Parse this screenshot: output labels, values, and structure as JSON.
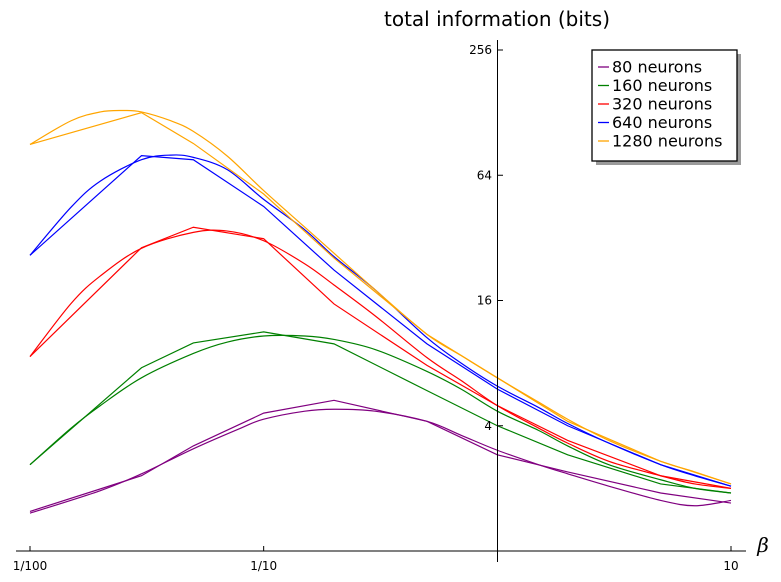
{
  "chart_data": {
    "type": "line",
    "title": "total information (bits)",
    "xlabel": "β",
    "ylabel": "",
    "x_scale": "log",
    "y_scale": "log2",
    "xlim": [
      0.01,
      10
    ],
    "ylim": [
      1,
      256
    ],
    "x_ticks": [
      {
        "value": 0.01,
        "label": "1/100"
      },
      {
        "value": 0.1,
        "label": "1/10"
      },
      {
        "value": 10,
        "label": "10"
      }
    ],
    "y_ticks": [
      {
        "value": 4,
        "label": "4"
      },
      {
        "value": 16,
        "label": "16"
      },
      {
        "value": 64,
        "label": "64"
      },
      {
        "value": 256,
        "label": "256"
      }
    ],
    "legend_position": "top-right",
    "series": [
      {
        "name": "80 neurons",
        "color": "#800080",
        "empirical": {
          "x": [
            0.01,
            0.03,
            0.05,
            0.1,
            0.2,
            0.5,
            1,
            2,
            5,
            10
          ],
          "y": [
            1.55,
            2.3,
            3.2,
            4.6,
            5.3,
            4.2,
            2.9,
            2.4,
            1.9,
            1.7
          ]
        },
        "fit": {
          "x": [
            0.01,
            0.02,
            0.03,
            0.05,
            0.08,
            0.1,
            0.15,
            0.2,
            0.3,
            0.5,
            0.7,
            1,
            1.5,
            2,
            3,
            5,
            7,
            10
          ],
          "y": [
            1.52,
            1.95,
            2.35,
            3.1,
            3.9,
            4.3,
            4.7,
            4.8,
            4.7,
            4.2,
            3.6,
            3.05,
            2.6,
            2.35,
            2.05,
            1.75,
            1.65,
            1.75
          ]
        }
      },
      {
        "name": "160 neurons",
        "color": "#008000",
        "empirical": {
          "x": [
            0.01,
            0.03,
            0.05,
            0.1,
            0.2,
            0.5,
            1,
            2,
            5,
            10
          ],
          "y": [
            2.6,
            7.6,
            10.0,
            11.3,
            9.9,
            5.9,
            4.0,
            2.9,
            2.1,
            1.9
          ]
        },
        "fit": {
          "x": [
            0.01,
            0.015,
            0.02,
            0.03,
            0.05,
            0.07,
            0.1,
            0.15,
            0.2,
            0.3,
            0.5,
            0.7,
            1,
            1.5,
            2,
            3,
            5,
            7,
            10
          ],
          "y": [
            2.6,
            3.9,
            5.0,
            6.8,
            8.9,
            10.1,
            10.8,
            10.8,
            10.4,
            9.3,
            7.3,
            6.0,
            4.7,
            3.8,
            3.2,
            2.6,
            2.2,
            2.0,
            1.9
          ]
        }
      },
      {
        "name": "320 neurons",
        "color": "#ff0000",
        "empirical": {
          "x": [
            0.01,
            0.03,
            0.05,
            0.1,
            0.2,
            0.5,
            1,
            2,
            5,
            10
          ],
          "y": [
            8.6,
            28.7,
            36.0,
            31.7,
            15.4,
            7.8,
            5.0,
            3.4,
            2.3,
            2.0
          ]
        },
        "fit": {
          "x": [
            0.01,
            0.015,
            0.02,
            0.03,
            0.05,
            0.07,
            0.1,
            0.15,
            0.2,
            0.3,
            0.5,
            0.7,
            1,
            1.5,
            2,
            3,
            5,
            7,
            10
          ],
          "y": [
            8.6,
            15.5,
            21.0,
            28.5,
            34.0,
            34.5,
            31.0,
            24.0,
            19.0,
            13.5,
            8.5,
            6.6,
            5.0,
            3.9,
            3.3,
            2.7,
            2.3,
            2.1,
            2.0
          ]
        }
      },
      {
        "name": "640 neurons",
        "color": "#0000ff",
        "empirical": {
          "x": [
            0.01,
            0.03,
            0.05,
            0.1,
            0.2,
            0.5,
            1,
            2,
            5,
            10
          ],
          "y": [
            26.4,
            79.5,
            76.0,
            45.3,
            22.4,
            9.9,
            6.0,
            4.0,
            2.6,
            2.05
          ]
        },
        "fit": {
          "x": [
            0.01,
            0.015,
            0.02,
            0.03,
            0.04,
            0.05,
            0.07,
            0.1,
            0.15,
            0.2,
            0.3,
            0.5,
            0.7,
            1,
            1.5,
            2,
            3,
            5,
            7,
            10
          ],
          "y": [
            26.4,
            45.0,
            60.0,
            76.0,
            80.0,
            78.0,
            68.0,
            49.0,
            35.0,
            26.0,
            18.0,
            10.6,
            8.0,
            6.2,
            4.9,
            4.1,
            3.3,
            2.6,
            2.3,
            2.05
          ]
        }
      },
      {
        "name": "1280 neurons",
        "color": "#ffa500",
        "empirical": {
          "x": [
            0.01,
            0.03,
            0.05,
            0.1,
            0.2,
            0.5,
            1,
            2,
            5,
            10
          ],
          "y": [
            90.0,
            128.0,
            91.0,
            52.0,
            25.6,
            11.0,
            6.8,
            4.2,
            2.7,
            2.1
          ]
        },
        "fit": {
          "x": [
            0.01,
            0.015,
            0.02,
            0.025,
            0.03,
            0.04,
            0.05,
            0.07,
            0.1,
            0.15,
            0.2,
            0.3,
            0.5,
            0.7,
            1,
            1.5,
            2,
            3,
            5,
            7,
            10
          ],
          "y": [
            90.0,
            117.0,
            129.0,
            131.0,
            129.0,
            117.0,
            104.0,
            79.0,
            54.0,
            36.0,
            27.0,
            18.0,
            11.0,
            8.7,
            6.8,
            5.2,
            4.3,
            3.4,
            2.7,
            2.4,
            2.1
          ]
        }
      }
    ]
  }
}
